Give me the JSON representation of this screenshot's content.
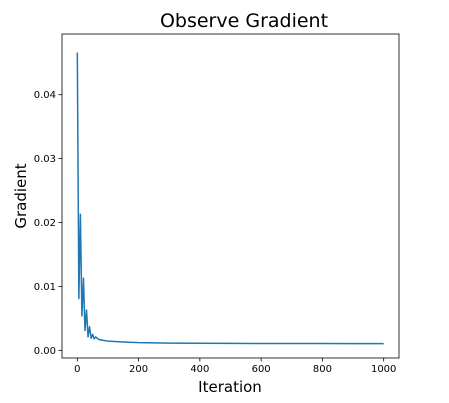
{
  "chart_data": {
    "type": "line",
    "title": "Observe Gradient",
    "xlabel": "Iteration",
    "ylabel": "Gradient",
    "xlim": [
      -50,
      1050
    ],
    "ylim": [
      -0.0012,
      0.0495
    ],
    "x_ticks": [
      0,
      200,
      400,
      600,
      800,
      1000
    ],
    "y_ticks": [
      0.0,
      0.01,
      0.02,
      0.03,
      0.04
    ],
    "x_tick_labels": [
      "0",
      "200",
      "400",
      "600",
      "800",
      "1000"
    ],
    "y_tick_labels": [
      "0.00",
      "0.01",
      "0.02",
      "0.03",
      "0.04"
    ],
    "grid": false,
    "legend": "none",
    "line_color": "#1f77b4",
    "series": [
      {
        "x": [
          0,
          5,
          10,
          15,
          20,
          25,
          30,
          35,
          40,
          45,
          50,
          55,
          60,
          70,
          80,
          100,
          150,
          200,
          300,
          400,
          500,
          600,
          700,
          800,
          900,
          1000
        ],
        "values": [
          0.0466,
          0.0081,
          0.0213,
          0.0054,
          0.0113,
          0.0031,
          0.0063,
          0.0021,
          0.0037,
          0.0019,
          0.0025,
          0.0018,
          0.0021,
          0.0017,
          0.0016,
          0.00145,
          0.0013,
          0.0012,
          0.00112,
          0.0011,
          0.00108,
          0.00107,
          0.00106,
          0.00106,
          0.00105,
          0.00105
        ]
      }
    ]
  }
}
